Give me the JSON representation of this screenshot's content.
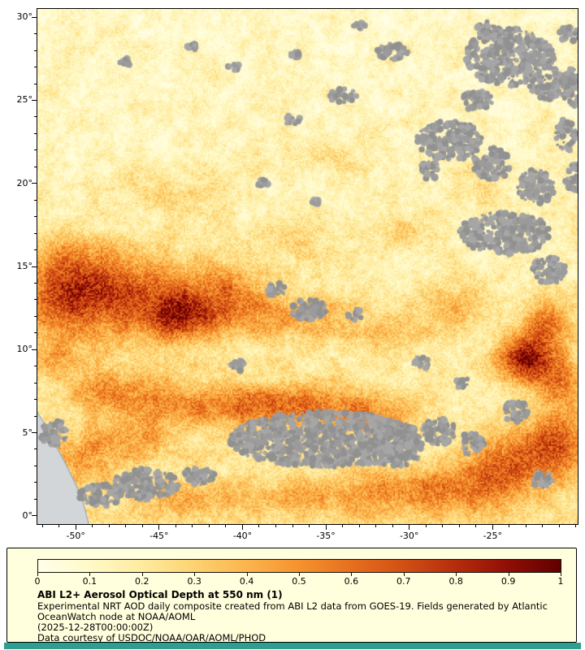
{
  "page": {
    "background": "#ffffff",
    "footer_bar_color": "#2f9e8f"
  },
  "map": {
    "frame_color": "#000000",
    "tick_color": "#000000",
    "label_color": "#000000",
    "land_color": "#d2d6d9",
    "coast_color": "#93aabb",
    "cloud_colors": [
      "#9b9b9b",
      "#a6a6a6",
      "#919191"
    ],
    "x_tick_labels": [
      {
        "value": -50,
        "label": "-50°"
      },
      {
        "value": -45,
        "label": "-45°"
      },
      {
        "value": -40,
        "label": "-40°"
      },
      {
        "value": -35,
        "label": "-35°"
      },
      {
        "value": -30,
        "label": "-30°"
      },
      {
        "value": -25,
        "label": "-25°"
      }
    ],
    "y_tick_labels": [
      {
        "value": 0,
        "label": "0°"
      },
      {
        "value": 5,
        "label": "5°"
      },
      {
        "value": 10,
        "label": "10°"
      },
      {
        "value": 15,
        "label": "15°"
      },
      {
        "value": 20,
        "label": "20°"
      },
      {
        "value": 25,
        "label": "25°"
      },
      {
        "value": 30,
        "label": "30°"
      }
    ]
  },
  "legend": {
    "background": "#ffffdd",
    "border_color": "#000000",
    "tick_labels": [
      "0",
      "0.1",
      "0.2",
      "0.3",
      "0.4",
      "0.5",
      "0.6",
      "0.7",
      "0.8",
      "0.9",
      "1"
    ],
    "title": "ABI L2+ Aerosol Optical Depth at 550 nm (1)",
    "description": "Experimental NRT AOD daily composite created from ABI L2 data from GOES-19. Fields generated by Atlantic OceanWatch node at NOAA/AOML",
    "timestamp": "(2025-12-28T00:00:00Z)",
    "credit": "Data courtesy of USDOC/NOAA/OAR/AOML/PHOD"
  },
  "chart_data": {
    "type": "heatmap",
    "title": "ABI L2+ Aerosol Optical Depth at 550 nm (1)",
    "xlabel": "",
    "ylabel": "",
    "xlim": [
      -52.3,
      -19.9
    ],
    "ylim": [
      -0.5,
      30.5
    ],
    "x_ticks": [
      -50,
      -45,
      -40,
      -35,
      -30,
      -25
    ],
    "y_ticks": [
      0,
      5,
      10,
      15,
      20,
      25,
      30
    ],
    "colorbar": {
      "min": 0,
      "max": 1,
      "ticks": [
        0,
        0.1,
        0.2,
        0.3,
        0.4,
        0.5,
        0.6,
        0.7,
        0.8,
        0.9,
        1
      ],
      "stops": [
        [
          0.0,
          "#ffffe9"
        ],
        [
          0.1,
          "#fff9c8"
        ],
        [
          0.2,
          "#feeb9e"
        ],
        [
          0.3,
          "#fdd271"
        ],
        [
          0.4,
          "#fcb44c"
        ],
        [
          0.5,
          "#f5922e"
        ],
        [
          0.6,
          "#e66f1e"
        ],
        [
          0.7,
          "#d14f14"
        ],
        [
          0.8,
          "#b52c0c"
        ],
        [
          0.9,
          "#8f0e06"
        ],
        [
          1.0,
          "#600000"
        ]
      ]
    },
    "field": {
      "base_min": 0.1,
      "base_max": 0.22,
      "speckle": 0.3,
      "blobs": [
        [
          -46.0,
          12.8,
          5.0,
          2.8,
          0.38
        ],
        [
          -43.6,
          12.0,
          2.0,
          1.2,
          0.42
        ],
        [
          -48.5,
          13.8,
          3.0,
          1.8,
          0.28
        ],
        [
          -51.0,
          12.8,
          2.2,
          2.2,
          0.3
        ],
        [
          -50.5,
          15.5,
          2.5,
          1.5,
          0.22
        ],
        [
          -41.0,
          13.5,
          2.6,
          1.6,
          0.25
        ],
        [
          -38.5,
          12.0,
          2.6,
          1.4,
          0.22
        ],
        [
          -35.0,
          12.0,
          2.4,
          1.3,
          0.18
        ],
        [
          -31.5,
          11.0,
          2.2,
          1.2,
          0.18
        ],
        [
          -27.5,
          12.5,
          2.2,
          1.4,
          0.22
        ],
        [
          -23.2,
          9.4,
          1.5,
          1.2,
          0.65
        ],
        [
          -21.8,
          11.3,
          1.5,
          1.8,
          0.4
        ],
        [
          -21.0,
          8.0,
          1.5,
          1.5,
          0.35
        ],
        [
          -44.5,
          6.8,
          3.2,
          1.4,
          0.3
        ],
        [
          -40.0,
          6.5,
          3.0,
          1.3,
          0.3
        ],
        [
          -36.0,
          6.8,
          3.0,
          1.3,
          0.33
        ],
        [
          -32.0,
          6.0,
          2.6,
          1.2,
          0.28
        ],
        [
          -48.5,
          7.5,
          2.2,
          1.3,
          0.25
        ],
        [
          -24.0,
          3.0,
          2.6,
          2.0,
          0.38
        ],
        [
          -21.0,
          4.5,
          2.0,
          1.8,
          0.4
        ],
        [
          -27.5,
          1.5,
          3.0,
          1.5,
          0.3
        ],
        [
          -31.5,
          1.5,
          2.5,
          1.2,
          0.22
        ],
        [
          -44.0,
          19.5,
          3.5,
          1.2,
          0.1
        ],
        [
          -37.0,
          16.5,
          3.0,
          1.2,
          0.12
        ],
        [
          -30.0,
          17.0,
          2.5,
          1.2,
          0.12
        ],
        [
          -34.5,
          21.5,
          3.0,
          1.0,
          0.08
        ],
        [
          -26.0,
          20.0,
          2.0,
          1.0,
          0.1
        ],
        [
          -49.5,
          3.5,
          2.0,
          1.5,
          0.22
        ],
        [
          -46.5,
          4.5,
          2.5,
          1.3,
          0.22
        ],
        [
          -44.0,
          1.0,
          3.0,
          1.2,
          0.18
        ],
        [
          -38.5,
          1.2,
          3.0,
          1.2,
          0.18
        ],
        [
          -34.0,
          1.0,
          2.5,
          1.0,
          0.15
        ],
        [
          -51.5,
          9.5,
          1.5,
          1.2,
          0.2
        ]
      ]
    },
    "clouds": [
      [
        -24.0,
        27.6,
        1.9,
        1.4,
        0.9
      ],
      [
        -21.6,
        26.0,
        1.2,
        1.0,
        0.8
      ],
      [
        -25.9,
        25.0,
        0.9,
        1.0,
        0.7
      ],
      [
        -27.6,
        22.6,
        1.5,
        1.3,
        0.8
      ],
      [
        -25.0,
        21.2,
        1.2,
        1.0,
        0.8
      ],
      [
        -22.4,
        19.8,
        1.1,
        1.0,
        0.9
      ],
      [
        -24.3,
        17.0,
        1.8,
        1.5,
        0.7
      ],
      [
        -21.6,
        14.8,
        1.0,
        1.0,
        0.8
      ],
      [
        -20.6,
        22.9,
        0.8,
        0.8,
        1.2
      ],
      [
        -20.2,
        25.8,
        0.9,
        0.8,
        1.3
      ],
      [
        -20.1,
        20.3,
        0.7,
        0.8,
        1.2
      ],
      [
        -20.4,
        29.0,
        0.6,
        1.0,
        0.8
      ],
      [
        -25.3,
        29.3,
        0.7,
        1.0,
        0.7
      ],
      [
        -31.0,
        27.9,
        0.8,
        1.2,
        0.6
      ],
      [
        -34.0,
        25.3,
        0.7,
        1.2,
        0.6
      ],
      [
        -37.0,
        23.8,
        0.5,
        1.0,
        0.6
      ],
      [
        -40.5,
        27.0,
        0.4,
        1.0,
        0.6
      ],
      [
        -38.7,
        20.0,
        0.4,
        1.0,
        0.6
      ],
      [
        -35.6,
        18.9,
        0.35,
        1.0,
        0.6
      ],
      [
        -33.0,
        29.5,
        0.4,
        1.0,
        0.6
      ],
      [
        -36.8,
        27.8,
        0.3,
        1.0,
        0.7
      ],
      [
        -28.8,
        20.8,
        0.7,
        1.0,
        0.8
      ],
      [
        -36.0,
        12.4,
        0.9,
        1.2,
        0.7
      ],
      [
        -38.0,
        13.6,
        0.6,
        1.0,
        0.7
      ],
      [
        -33.3,
        12.1,
        0.5,
        1.0,
        0.7
      ],
      [
        -40.3,
        9.0,
        0.5,
        1.0,
        0.7
      ],
      [
        -35.0,
        4.6,
        2.4,
        2.4,
        0.7
      ],
      [
        -30.8,
        4.0,
        1.3,
        1.3,
        0.8
      ],
      [
        -28.2,
        5.1,
        1.0,
        1.0,
        0.8
      ],
      [
        -26.3,
        4.3,
        0.8,
        1.0,
        0.8
      ],
      [
        -23.6,
        6.3,
        0.8,
        1.0,
        0.8
      ],
      [
        -45.8,
        1.9,
        1.3,
        1.5,
        0.7
      ],
      [
        -48.5,
        1.2,
        1.0,
        1.3,
        0.7
      ],
      [
        -42.6,
        2.4,
        0.8,
        1.2,
        0.7
      ],
      [
        -29.3,
        9.2,
        0.5,
        1.0,
        0.8
      ],
      [
        -26.8,
        8.0,
        0.4,
        1.0,
        0.8
      ],
      [
        -47.0,
        27.3,
        0.35,
        1.0,
        0.7
      ],
      [
        -43.0,
        28.2,
        0.3,
        1.0,
        0.7
      ],
      [
        -22.0,
        2.2,
        0.7,
        1.0,
        0.8
      ],
      [
        -51.3,
        5.0,
        0.8,
        1.0,
        1.0
      ]
    ],
    "land_polygon": [
      [
        -52.35,
        6.3
      ],
      [
        -51.9,
        5.6
      ],
      [
        -51.3,
        4.4
      ],
      [
        -50.7,
        3.3
      ],
      [
        -50.1,
        2.1
      ],
      [
        -49.6,
        1.0
      ],
      [
        -49.4,
        0.2
      ],
      [
        -49.2,
        -0.6
      ],
      [
        -52.35,
        -0.6
      ]
    ]
  }
}
